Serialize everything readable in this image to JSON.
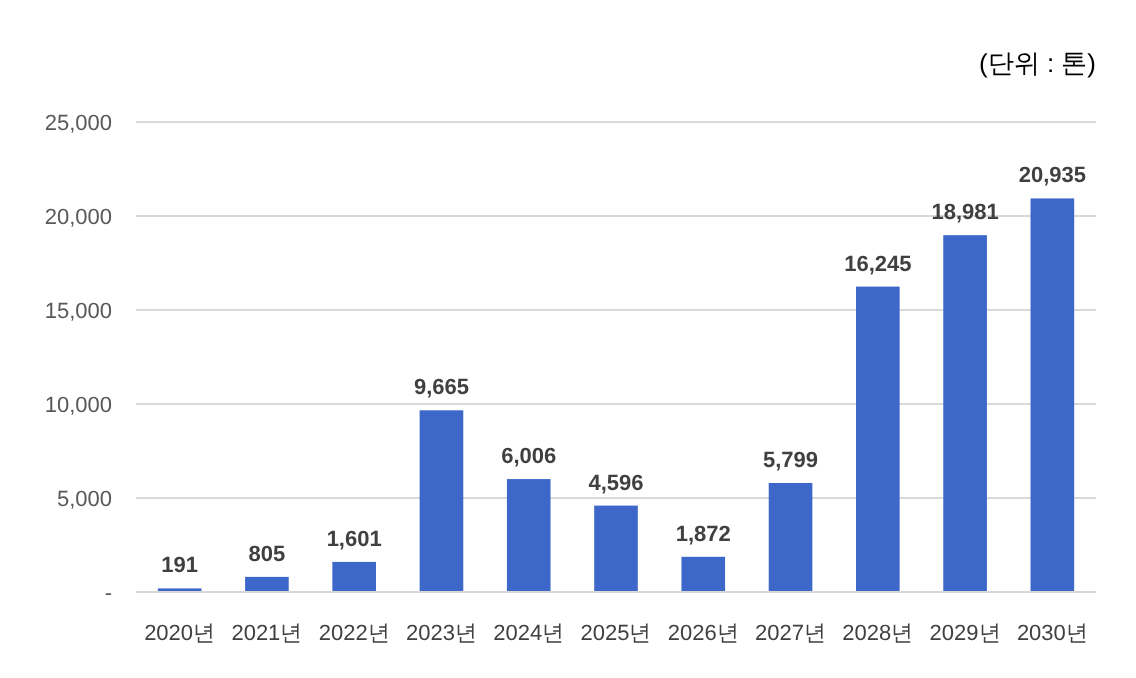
{
  "chart_data": {
    "type": "bar",
    "categories": [
      "2020년",
      "2021년",
      "2022년",
      "2023년",
      "2024년",
      "2025년",
      "2026년",
      "2027년",
      "2028년",
      "2029년",
      "2030년"
    ],
    "values": [
      191,
      805,
      1601,
      9665,
      6006,
      4596,
      1872,
      5799,
      16245,
      18981,
      20935
    ],
    "value_labels": [
      "191",
      "805",
      "1,601",
      "9,665",
      "6,006",
      "4,596",
      "1,872",
      "5,799",
      "16,245",
      "18,981",
      "20,935"
    ],
    "color": "#3d68c9",
    "ylim": [
      0,
      25000
    ],
    "yticks": [
      {
        "value": 0,
        "label": "-"
      },
      {
        "value": 5000,
        "label": "5,000"
      },
      {
        "value": 10000,
        "label": "10,000"
      },
      {
        "value": 15000,
        "label": "15,000"
      },
      {
        "value": 20000,
        "label": "20,000"
      },
      {
        "value": 25000,
        "label": "25,000"
      }
    ],
    "grid": "y",
    "annotations": [
      "(단위 : 톤)"
    ]
  }
}
